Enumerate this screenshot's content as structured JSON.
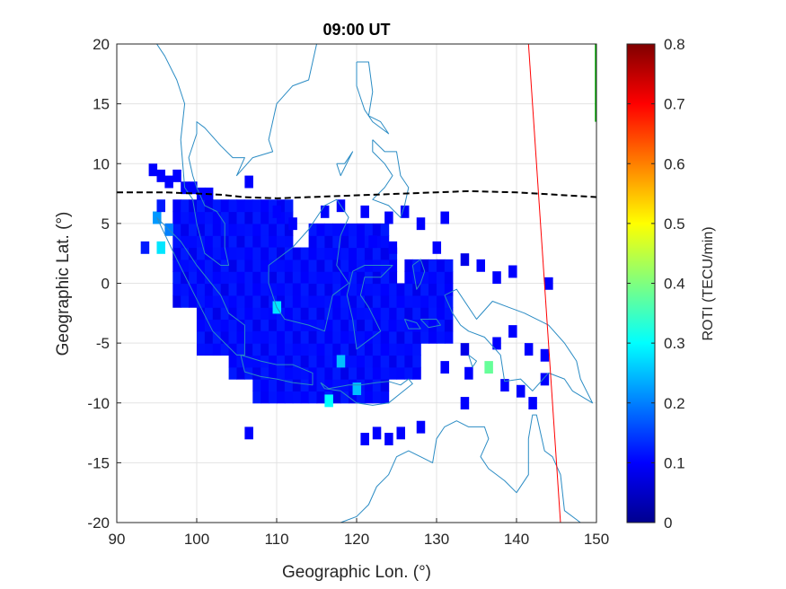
{
  "chart_data": {
    "type": "heatmap",
    "title": "09:00 UT",
    "xlabel": "Geographic Lon. (°)",
    "ylabel": "Geographic Lat. (°)",
    "xlim": [
      90,
      150
    ],
    "ylim": [
      -20,
      20
    ],
    "xticks": [
      "90",
      "100",
      "110",
      "120",
      "130",
      "140",
      "150"
    ],
    "yticks": [
      "20",
      "15",
      "10",
      "5",
      "0",
      "-5",
      "-10",
      "-15",
      "-20"
    ],
    "grid": true,
    "colorbar": {
      "label": "ROTI (TECU/min)",
      "range": [
        0,
        0.8
      ],
      "ticks": [
        "0.8",
        "0.7",
        "0.6",
        "0.5",
        "0.4",
        "0.3",
        "0.2",
        "0.1",
        "0"
      ],
      "colormap": "jet"
    },
    "bin_size_deg": 1,
    "roti_cells": [
      [
        94.5,
        9.5,
        0.1
      ],
      [
        95.5,
        9,
        0.1
      ],
      [
        96.5,
        8.5,
        0.1
      ],
      [
        97.5,
        9,
        0.1
      ],
      [
        98.5,
        8,
        0.1
      ],
      [
        99.5,
        8,
        0.1
      ],
      [
        100.5,
        7.5,
        0.1
      ],
      [
        101.5,
        7.5,
        0.1
      ],
      [
        106.5,
        8.5,
        0.1
      ],
      [
        95,
        5.5,
        0.22
      ],
      [
        95.5,
        3,
        0.28
      ],
      [
        96.5,
        4.5,
        0.2
      ],
      [
        95.5,
        6.5,
        0.12
      ],
      [
        110,
        6,
        0.1
      ],
      [
        112,
        5,
        0.1
      ],
      [
        116,
        6,
        0.1
      ],
      [
        118,
        6.5,
        0.1
      ],
      [
        121,
        6,
        0.1
      ],
      [
        124,
        5.5,
        0.1
      ],
      [
        126,
        6,
        0.1
      ],
      [
        128,
        5,
        0.1
      ],
      [
        131,
        5.5,
        0.1
      ],
      [
        130,
        3,
        0.1
      ],
      [
        122,
        3.5,
        0.1
      ],
      [
        124.5,
        3,
        0.1
      ],
      [
        133.5,
        2,
        0.08
      ],
      [
        135.5,
        1.5,
        0.1
      ],
      [
        137.5,
        0.5,
        0.1
      ],
      [
        139.5,
        1,
        0.1
      ],
      [
        144,
        0,
        0.1
      ],
      [
        143.5,
        -6,
        0.1
      ],
      [
        141.5,
        -5.5,
        0.1
      ],
      [
        139.5,
        -4,
        0.1
      ],
      [
        137.5,
        -5,
        0.1
      ],
      [
        133.5,
        -5.5,
        0.08
      ],
      [
        131,
        -7,
        0.1
      ],
      [
        134,
        -7.5,
        0.1
      ],
      [
        136.5,
        -7,
        0.38
      ],
      [
        138.5,
        -8.5,
        0.1
      ],
      [
        140.5,
        -9,
        0.1
      ],
      [
        142,
        -10,
        0.1
      ],
      [
        133.5,
        -10,
        0.1
      ],
      [
        106.5,
        -12.5,
        0.1
      ],
      [
        121,
        -13,
        0.1
      ],
      [
        122.5,
        -12.5,
        0.1
      ],
      [
        124,
        -13,
        0.1
      ],
      [
        125.5,
        -12.5,
        0.1
      ],
      [
        128,
        -12,
        0.1
      ],
      [
        143.5,
        -8,
        0.1
      ],
      [
        93.5,
        3,
        0.12
      ],
      [
        110,
        -2,
        0.28
      ],
      [
        116.5,
        -9.8,
        0.3
      ],
      [
        120,
        -8.8,
        0.25
      ],
      [
        118,
        -6.5,
        0.25
      ]
    ],
    "roti_regions": [
      {
        "lon_min": 97,
        "lon_max": 112,
        "lat_min": -2,
        "lat_max": 7,
        "value": 0.1
      },
      {
        "lon_min": 100,
        "lon_max": 125,
        "lat_min": -6,
        "lat_max": 3,
        "value": 0.1
      },
      {
        "lon_min": 104,
        "lon_max": 128,
        "lat_min": -8,
        "lat_max": 0,
        "value": 0.1
      },
      {
        "lon_min": 107,
        "lon_max": 124,
        "lat_min": -10,
        "lat_max": -4,
        "value": 0.1
      },
      {
        "lon_min": 114,
        "lon_max": 124,
        "lat_min": -3,
        "lat_max": 5,
        "value": 0.1
      },
      {
        "lon_min": 126,
        "lon_max": 132,
        "lat_min": -5,
        "lat_max": 2,
        "value": 0.1
      }
    ],
    "dip_equator": [
      [
        90,
        7.6
      ],
      [
        96,
        7.6
      ],
      [
        100,
        7.5
      ],
      [
        103,
        7.4
      ],
      [
        106,
        7.2
      ],
      [
        110,
        7.1
      ],
      [
        114,
        7.2
      ],
      [
        118,
        7.3
      ],
      [
        122,
        7.4
      ],
      [
        126,
        7.5
      ],
      [
        130,
        7.6
      ],
      [
        134,
        7.7
      ],
      [
        140,
        7.6
      ],
      [
        145,
        7.4
      ],
      [
        150,
        7.2
      ]
    ],
    "red_line": [
      [
        141.5,
        20
      ],
      [
        145.5,
        -20
      ]
    ],
    "green_line": [
      [
        150,
        20
      ],
      [
        150,
        13.5
      ]
    ],
    "coastlines": [
      [
        [
          115,
          20
        ],
        [
          114,
          17
        ],
        [
          112,
          16.5
        ],
        [
          110,
          15
        ],
        [
          109,
          12
        ],
        [
          109.5,
          11
        ],
        [
          107,
          10.5
        ],
        [
          105,
          9
        ],
        [
          106,
          10.5
        ],
        [
          104.5,
          10.5
        ],
        [
          103,
          11.5
        ],
        [
          101,
          13
        ],
        [
          100,
          13.5
        ],
        [
          100,
          12.5
        ],
        [
          99,
          10.5
        ],
        [
          99.5,
          9
        ],
        [
          100,
          8
        ],
        [
          101,
          6.5
        ],
        [
          102.5,
          6
        ],
        [
          103.5,
          5
        ],
        [
          103.5,
          3
        ],
        [
          104,
          1.5
        ],
        [
          103,
          1.5
        ],
        [
          101,
          2.5
        ],
        [
          100,
          5
        ],
        [
          99.5,
          7
        ],
        [
          98.5,
          8
        ],
        [
          98,
          12
        ],
        [
          98.5,
          15
        ],
        [
          97.5,
          17
        ],
        [
          96,
          19
        ],
        [
          95,
          20
        ]
      ],
      [
        [
          95,
          5.5
        ],
        [
          98,
          3.5
        ],
        [
          100,
          1.5
        ],
        [
          103,
          -1
        ],
        [
          104,
          -2.5
        ],
        [
          106,
          -3.5
        ],
        [
          106,
          -6
        ],
        [
          105,
          -6
        ],
        [
          102,
          -4
        ],
        [
          100.5,
          -2
        ],
        [
          99,
          0
        ],
        [
          97.5,
          2
        ],
        [
          95,
          5.5
        ]
      ],
      [
        [
          105.5,
          -6
        ],
        [
          108,
          -6.5
        ],
        [
          110,
          -6.8
        ],
        [
          112,
          -6.8
        ],
        [
          114.5,
          -7.5
        ],
        [
          114.5,
          -8.5
        ],
        [
          112,
          -8.3
        ],
        [
          110,
          -8
        ],
        [
          108,
          -7.8
        ],
        [
          106,
          -7.4
        ],
        [
          105.5,
          -6
        ]
      ],
      [
        [
          109,
          1.5
        ],
        [
          110,
          2
        ],
        [
          112,
          3
        ],
        [
          114,
          4.5
        ],
        [
          116,
          6.5
        ],
        [
          117.5,
          7
        ],
        [
          119,
          5.5
        ],
        [
          118,
          4
        ],
        [
          117.5,
          1.5
        ],
        [
          119,
          0
        ],
        [
          117,
          -1
        ],
        [
          116,
          -4
        ],
        [
          114,
          -3.5
        ],
        [
          111,
          -3
        ],
        [
          110,
          -2
        ],
        [
          109,
          0
        ],
        [
          109,
          1.5
        ]
      ],
      [
        [
          119.5,
          1
        ],
        [
          121,
          1.5
        ],
        [
          124.5,
          1.5
        ],
        [
          123,
          0.5
        ],
        [
          121,
          0.5
        ],
        [
          120.5,
          -1
        ],
        [
          121.5,
          -2
        ],
        [
          123,
          -4
        ],
        [
          121,
          -5
        ],
        [
          120,
          -5.5
        ],
        [
          119.5,
          -3
        ],
        [
          118.8,
          -1
        ],
        [
          119.5,
          1
        ]
      ],
      [
        [
          120,
          18.5
        ],
        [
          121.5,
          18.5
        ],
        [
          122,
          16
        ],
        [
          121.5,
          14
        ],
        [
          123,
          13.5
        ],
        [
          124,
          12.5
        ],
        [
          122,
          13.5
        ],
        [
          121,
          14.5
        ],
        [
          120.5,
          15.5
        ],
        [
          120,
          16.5
        ],
        [
          120,
          18.5
        ]
      ],
      [
        [
          122,
          12
        ],
        [
          123.5,
          11
        ],
        [
          125,
          11
        ],
        [
          125.5,
          9
        ],
        [
          126.5,
          8
        ],
        [
          126,
          6.5
        ],
        [
          125.5,
          5.5
        ],
        [
          124,
          6.5
        ],
        [
          122,
          7
        ],
        [
          123.5,
          8
        ],
        [
          124.5,
          9
        ],
        [
          123.5,
          10
        ],
        [
          122,
          11
        ],
        [
          122,
          12
        ]
      ],
      [
        [
          117.5,
          10
        ],
        [
          118.5,
          10
        ],
        [
          119.5,
          11
        ],
        [
          118,
          9
        ],
        [
          117.5,
          10
        ]
      ],
      [
        [
          131,
          -1
        ],
        [
          132.5,
          -0.5
        ],
        [
          135,
          -3
        ],
        [
          137,
          -1.5
        ],
        [
          139,
          -2
        ],
        [
          141,
          -2.5
        ],
        [
          144,
          -3.5
        ],
        [
          146,
          -5
        ],
        [
          147.5,
          -6.5
        ],
        [
          148,
          -8
        ],
        [
          149.5,
          -10
        ],
        [
          147,
          -9
        ],
        [
          146,
          -8
        ],
        [
          144,
          -7.5
        ],
        [
          142,
          -9
        ],
        [
          140.5,
          -8
        ],
        [
          138.5,
          -8.2
        ],
        [
          138,
          -6
        ],
        [
          136,
          -4.5
        ],
        [
          134,
          -4
        ],
        [
          133,
          -3.5
        ],
        [
          132,
          -2.5
        ],
        [
          131,
          -1
        ]
      ],
      [
        [
          115.5,
          -8.3
        ],
        [
          116.5,
          -8.8
        ],
        [
          119,
          -8.5
        ],
        [
          120.5,
          -8.5
        ],
        [
          122.5,
          -8.3
        ],
        [
          124,
          -8.2
        ],
        [
          125.5,
          -8.5
        ],
        [
          126.5,
          -8
        ],
        [
          127,
          -8.4
        ],
        [
          125.5,
          -9.2
        ],
        [
          124,
          -10
        ],
        [
          122,
          -10.2
        ],
        [
          120,
          -10
        ],
        [
          118,
          -9
        ],
        [
          116,
          -8.8
        ],
        [
          115.5,
          -8.3
        ]
      ],
      [
        [
          113,
          -22
        ],
        [
          114,
          -21.5
        ],
        [
          116,
          -20.5
        ],
        [
          118,
          -20
        ],
        [
          120,
          -19.5
        ],
        [
          121.5,
          -18.5
        ],
        [
          122.5,
          -17
        ],
        [
          124,
          -16
        ],
        [
          125,
          -14.5
        ],
        [
          126.5,
          -14
        ],
        [
          128,
          -14.5
        ],
        [
          129.5,
          -15
        ],
        [
          130,
          -13
        ],
        [
          131,
          -12
        ],
        [
          132.5,
          -11.5
        ],
        [
          134,
          -12
        ],
        [
          136,
          -12
        ],
        [
          136.5,
          -13
        ],
        [
          135.5,
          -14.5
        ],
        [
          136.5,
          -15.5
        ],
        [
          138.5,
          -16.5
        ],
        [
          140,
          -17.5
        ],
        [
          141.5,
          -16
        ],
        [
          141.5,
          -13
        ],
        [
          142,
          -11
        ],
        [
          142.5,
          -11
        ],
        [
          143.5,
          -14
        ],
        [
          144.5,
          -14.5
        ],
        [
          145.5,
          -16
        ],
        [
          146,
          -19
        ],
        [
          148,
          -20
        ],
        [
          150,
          -21
        ]
      ],
      [
        [
          127,
          1.5
        ],
        [
          128,
          2
        ],
        [
          128.5,
          1
        ],
        [
          128,
          0
        ],
        [
          127.5,
          -0.5
        ],
        [
          127,
          1.5
        ]
      ],
      [
        [
          126,
          -3
        ],
        [
          127.5,
          -3.3
        ],
        [
          128,
          -3.8
        ],
        [
          126.5,
          -3.8
        ],
        [
          126,
          -3
        ]
      ],
      [
        [
          128,
          -3
        ],
        [
          130,
          -3
        ],
        [
          130.5,
          -3.5
        ],
        [
          129,
          -3.7
        ],
        [
          128,
          -3
        ]
      ],
      [
        [
          134,
          -6
        ],
        [
          135,
          -6.5
        ],
        [
          134.5,
          -7
        ],
        [
          134,
          -6
        ]
      ],
      [
        [
          150,
          -5.5
        ],
        [
          151,
          -5
        ],
        [
          152,
          -4
        ],
        [
          151,
          -4.5
        ],
        [
          150,
          -5.5
        ]
      ],
      [
        [
          150,
          -2.5
        ],
        [
          152,
          -3
        ],
        [
          151,
          -3.5
        ],
        [
          150,
          -2.5
        ]
      ]
    ]
  }
}
